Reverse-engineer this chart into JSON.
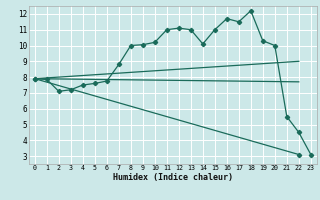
{
  "title": "",
  "xlabel": "Humidex (Indice chaleur)",
  "bg_color": "#cce8e8",
  "grid_color": "#ffffff",
  "line_color": "#1a6b5a",
  "xlim": [
    -0.5,
    23.5
  ],
  "ylim": [
    2.5,
    12.5
  ],
  "xticks": [
    0,
    1,
    2,
    3,
    4,
    5,
    6,
    7,
    8,
    9,
    10,
    11,
    12,
    13,
    14,
    15,
    16,
    17,
    18,
    19,
    20,
    21,
    22,
    23
  ],
  "yticks": [
    3,
    4,
    5,
    6,
    7,
    8,
    9,
    10,
    11,
    12
  ],
  "line1_x": [
    0,
    1,
    2,
    3,
    4,
    5,
    6,
    7,
    8,
    9,
    10,
    11,
    12,
    13,
    14,
    15,
    16,
    17,
    18,
    19,
    20,
    21,
    22,
    23
  ],
  "line1_y": [
    7.9,
    7.85,
    7.1,
    7.2,
    7.5,
    7.6,
    7.75,
    8.8,
    10.0,
    10.05,
    10.2,
    11.0,
    11.1,
    11.0,
    10.1,
    11.0,
    11.7,
    11.5,
    12.2,
    10.3,
    10.0,
    5.5,
    4.5,
    3.1
  ],
  "line2_x": [
    0,
    22
  ],
  "line2_y": [
    7.9,
    9.0
  ],
  "line3_x": [
    0,
    22
  ],
  "line3_y": [
    7.9,
    7.7
  ],
  "line4_x": [
    0,
    22
  ],
  "line4_y": [
    7.9,
    3.1
  ],
  "marker": "D",
  "marker_size": 2.2,
  "linewidth": 0.9,
  "tick_fontsize_x": 4.8,
  "tick_fontsize_y": 5.5,
  "xlabel_fontsize": 6.0
}
